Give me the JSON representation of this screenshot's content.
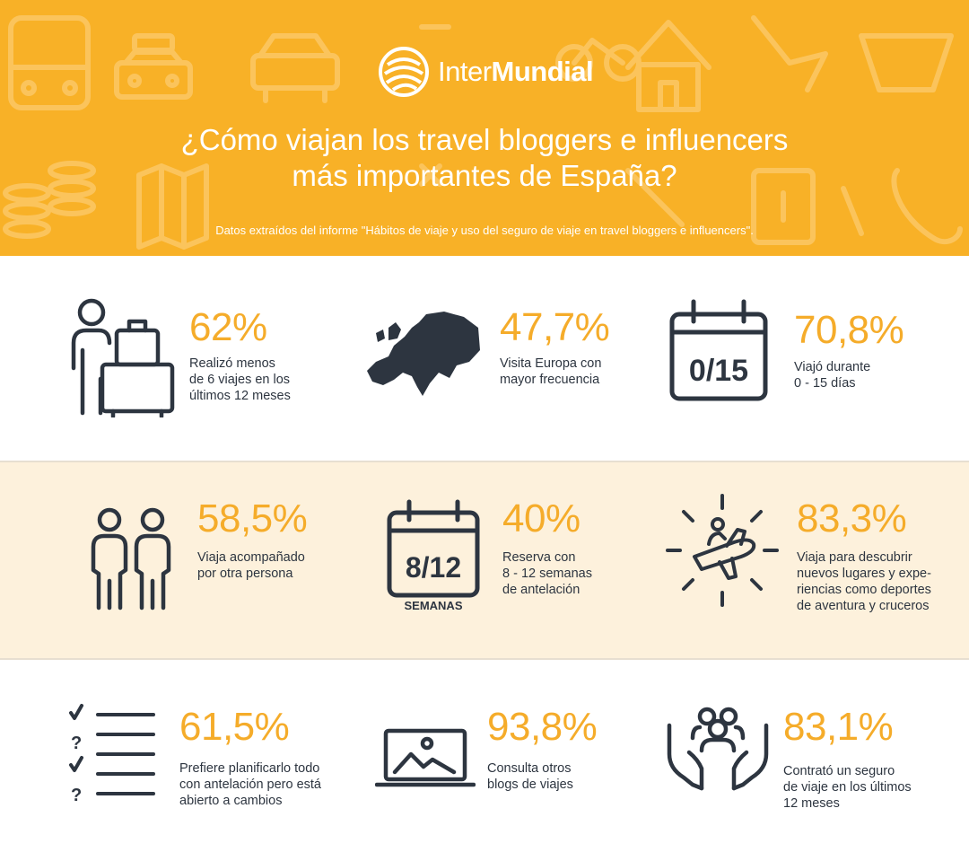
{
  "header": {
    "brand": {
      "part1": "Inter",
      "part2": "Mundial"
    },
    "title_line1": "¿Cómo viajan los travel bloggers e influencers",
    "title_line2": "más importantes de España?",
    "subtitle": "Datos extraídos del informe \"Hábitos de viaje y uso del seguro de viaje en travel bloggers e influencers\"."
  },
  "colors": {
    "header_bg": "#f8b127",
    "accent": "#f5ac2a",
    "icon": "#2d3540",
    "band_bg": "#fdf1dc"
  },
  "stats": [
    {
      "icon": "traveler-luggage-icon",
      "value": "62%",
      "lines": [
        "Realizó menos",
        "de 6 viajes en los",
        "últimos 12 meses"
      ]
    },
    {
      "icon": "europe-map-icon",
      "value": "47,7%",
      "lines": [
        "Visita Europa con",
        "mayor frecuencia"
      ]
    },
    {
      "icon": "calendar-days-icon",
      "icon_text": "0/15",
      "value": "70,8%",
      "lines": [
        "Viajó durante",
        "0 - 15 días"
      ]
    },
    {
      "icon": "two-people-icon",
      "value": "58,5%",
      "lines": [
        "Viaja acompañado",
        "por otra persona"
      ]
    },
    {
      "icon": "calendar-weeks-icon",
      "icon_text": "8/12",
      "icon_caption": "SEMANAS",
      "value": "40%",
      "lines": [
        "Reserva con",
        "8 - 12 semanas",
        "de antelación"
      ]
    },
    {
      "icon": "plane-adventure-icon",
      "value": "83,3%",
      "lines": [
        "Viaja para descubrir",
        "nuevos lugares y expe-",
        "riencias como deportes",
        "de aventura y cruceros"
      ]
    },
    {
      "icon": "checklist-icon",
      "value": "61,5%",
      "lines": [
        "Prefiere planificarlo todo",
        "con antelación pero está",
        "abierto a cambios"
      ]
    },
    {
      "icon": "laptop-blog-icon",
      "value": "93,8%",
      "lines": [
        "Consulta otros",
        "blogs de viajes"
      ]
    },
    {
      "icon": "insurance-hands-icon",
      "value": "83,1%",
      "lines": [
        "Contrató un seguro",
        "de viaje en los últimos",
        "12 meses"
      ]
    }
  ]
}
